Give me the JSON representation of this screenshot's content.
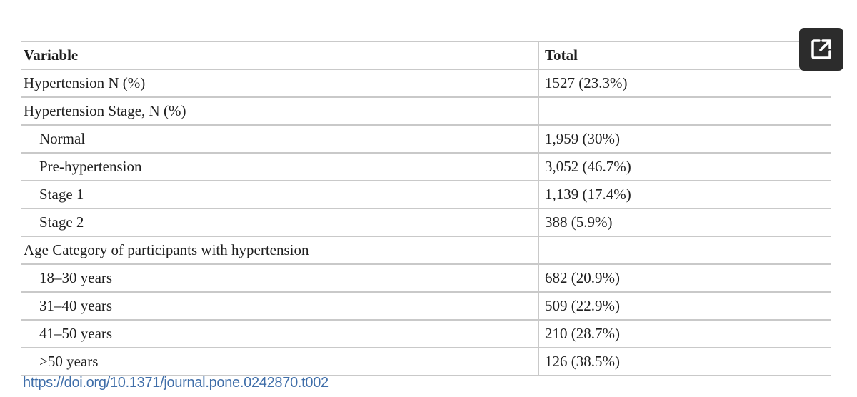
{
  "table": {
    "headers": [
      "Variable",
      "Total"
    ],
    "rows": [
      {
        "variable": "Hypertension N (%)",
        "total": "1527 (23.3%)",
        "indent": false
      },
      {
        "variable": "Hypertension Stage, N (%)",
        "total": "",
        "indent": false
      },
      {
        "variable": "Normal",
        "total": "1,959 (30%)",
        "indent": true
      },
      {
        "variable": "Pre-hypertension",
        "total": "3,052 (46.7%)",
        "indent": true
      },
      {
        "variable": "Stage 1",
        "total": "1,139 (17.4%)",
        "indent": true
      },
      {
        "variable": "Stage 2",
        "total": "388 (5.9%)",
        "indent": true
      },
      {
        "variable": "Age Category of participants with hypertension",
        "total": "",
        "indent": false
      },
      {
        "variable": "18–30 years",
        "total": "682 (20.9%)",
        "indent": true
      },
      {
        "variable": "31–40 years",
        "total": "509 (22.9%)",
        "indent": true
      },
      {
        "variable": "41–50 years",
        "total": "210 (28.7%)",
        "indent": true
      },
      {
        "variable": ">50 years",
        "total": "126 (38.5%)",
        "indent": true
      }
    ]
  },
  "doi_link": "https://doi.org/10.1371/journal.pone.0242870.t002",
  "expand_button": {
    "icon": "open-in-new-icon"
  }
}
